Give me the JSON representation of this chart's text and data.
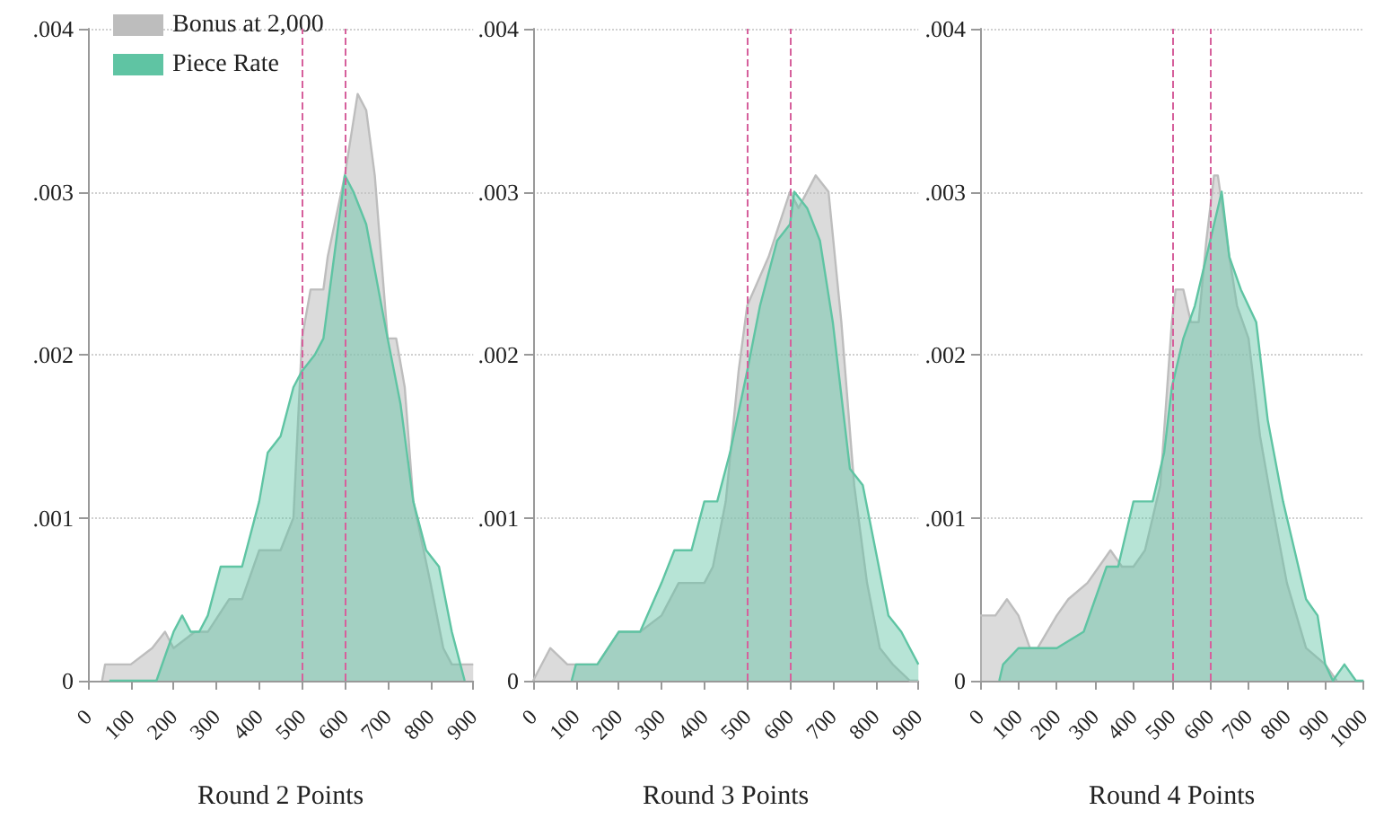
{
  "chart_data": [
    {
      "type": "area",
      "xlabel": "Round 2 Points",
      "xlim": [
        0,
        900
      ],
      "xticks": [
        0,
        100,
        200,
        300,
        400,
        500,
        600,
        700,
        800,
        900
      ],
      "ylim": [
        0,
        0.004
      ],
      "yticks": [
        {
          "value": 0,
          "label": "0"
        },
        {
          "value": 0.001,
          "label": ".001"
        },
        {
          "value": 0.002,
          "label": ".002"
        },
        {
          "value": 0.003,
          "label": ".003"
        },
        {
          "value": 0.004,
          "label": ".004"
        }
      ],
      "grid": "y",
      "legend": "top left",
      "line_style": "solid",
      "marker": "none",
      "ref_lines": [
        {
          "axis": "x",
          "value": 500,
          "color": "#d6609c",
          "line_style": "dashed"
        },
        {
          "axis": "x",
          "value": 600,
          "color": "#d6609c",
          "line_style": "dashed"
        }
      ],
      "series": [
        {
          "name": "Bonus at 2,000",
          "color": "#bdbdbd",
          "x": [
            33,
            40,
            100,
            150,
            180,
            200,
            250,
            280,
            330,
            360,
            400,
            450,
            480,
            500,
            520,
            550,
            560,
            600,
            630,
            650,
            670,
            700,
            720,
            740,
            760,
            800,
            830,
            850,
            880,
            900
          ],
          "values": [
            0,
            0.0001,
            0.0001,
            0.0002,
            0.0003,
            0.0002,
            0.0003,
            0.0003,
            0.0005,
            0.0005,
            0.0008,
            0.0008,
            0.001,
            0.0021,
            0.0024,
            0.0024,
            0.0026,
            0.0031,
            0.0036,
            0.0035,
            0.0031,
            0.0021,
            0.0021,
            0.0018,
            0.0011,
            0.0006,
            0.0002,
            0.0001,
            0.0001,
            0.0001
          ]
        },
        {
          "name": "Piece Rate",
          "color": "#5fc4a3",
          "x": [
            50,
            70,
            100,
            140,
            160,
            200,
            220,
            240,
            260,
            280,
            310,
            320,
            340,
            360,
            380,
            400,
            420,
            450,
            480,
            500,
            530,
            550,
            570,
            600,
            620,
            650,
            700,
            730,
            760,
            790,
            820,
            850,
            870,
            880
          ],
          "values": [
            0,
            0,
            0,
            0,
            0,
            0.0003,
            0.0004,
            0.0003,
            0.0003,
            0.0004,
            0.0007,
            0.0007,
            0.0007,
            0.0007,
            0.0009,
            0.0011,
            0.0014,
            0.0015,
            0.0018,
            0.0019,
            0.002,
            0.0021,
            0.0025,
            0.0031,
            0.003,
            0.0028,
            0.0021,
            0.0017,
            0.0011,
            0.0008,
            0.0007,
            0.0003,
            0.0001,
            0
          ]
        }
      ]
    },
    {
      "type": "area",
      "xlabel": "Round 3 Points",
      "xlim": [
        0,
        900
      ],
      "xticks": [
        0,
        100,
        200,
        300,
        400,
        500,
        600,
        700,
        800,
        900
      ],
      "ylim": [
        0,
        0.004
      ],
      "yticks": [
        {
          "value": 0,
          "label": "0"
        },
        {
          "value": 0.001,
          "label": ".001"
        },
        {
          "value": 0.002,
          "label": ".002"
        },
        {
          "value": 0.003,
          "label": ".003"
        },
        {
          "value": 0.004,
          "label": ".004"
        }
      ],
      "grid": "y",
      "line_style": "solid",
      "marker": "none",
      "ref_lines": [
        {
          "axis": "x",
          "value": 500,
          "color": "#d6609c",
          "line_style": "dashed"
        },
        {
          "axis": "x",
          "value": 600,
          "color": "#d6609c",
          "line_style": "dashed"
        }
      ],
      "series": [
        {
          "color": "#bdbdbd",
          "x": [
            0,
            40,
            80,
            130,
            150,
            200,
            250,
            300,
            340,
            370,
            400,
            420,
            450,
            480,
            500,
            550,
            600,
            620,
            660,
            690,
            720,
            750,
            780,
            810,
            840,
            880,
            900
          ],
          "values": [
            0,
            0.0002,
            0.0001,
            0.0001,
            0.0001,
            0.0003,
            0.0003,
            0.0004,
            0.0006,
            0.0006,
            0.0006,
            0.0007,
            0.0011,
            0.0019,
            0.0023,
            0.0026,
            0.003,
            0.0029,
            0.0031,
            0.003,
            0.0022,
            0.0012,
            0.0006,
            0.0002,
            0.0001,
            0,
            0
          ]
        },
        {
          "color": "#5fc4a3",
          "x": [
            90,
            100,
            150,
            200,
            250,
            300,
            330,
            350,
            370,
            400,
            430,
            460,
            500,
            530,
            570,
            600,
            610,
            640,
            670,
            700,
            740,
            770,
            800,
            830,
            860,
            880,
            900
          ],
          "values": [
            0,
            0.0001,
            0.0001,
            0.0003,
            0.0003,
            0.0006,
            0.0008,
            0.0008,
            0.0008,
            0.0011,
            0.0011,
            0.0014,
            0.0019,
            0.0023,
            0.0027,
            0.0028,
            0.003,
            0.0029,
            0.0027,
            0.0022,
            0.0013,
            0.0012,
            0.0008,
            0.0004,
            0.0003,
            0.0002,
            0.0001
          ]
        }
      ]
    },
    {
      "type": "area",
      "xlabel": "Round 4 Points",
      "xlim": [
        0,
        1000
      ],
      "xticks": [
        0,
        100,
        200,
        300,
        400,
        500,
        600,
        700,
        800,
        900,
        1000
      ],
      "ylim": [
        0,
        0.004
      ],
      "yticks": [
        {
          "value": 0,
          "label": "0"
        },
        {
          "value": 0.001,
          "label": ".001"
        },
        {
          "value": 0.002,
          "label": ".002"
        },
        {
          "value": 0.003,
          "label": ".003"
        },
        {
          "value": 0.004,
          "label": ".004"
        }
      ],
      "grid": "y",
      "line_style": "solid",
      "marker": "none",
      "ref_lines": [
        {
          "axis": "x",
          "value": 500,
          "color": "#d6609c",
          "line_style": "dashed"
        },
        {
          "axis": "x",
          "value": 600,
          "color": "#d6609c",
          "line_style": "dashed"
        }
      ],
      "series": [
        {
          "color": "#bdbdbd",
          "x": [
            0,
            20,
            40,
            70,
            100,
            130,
            150,
            200,
            230,
            280,
            310,
            340,
            370,
            400,
            430,
            470,
            500,
            510,
            530,
            550,
            570,
            590,
            610,
            620,
            650,
            670,
            700,
            730,
            760,
            800,
            850,
            900,
            930
          ],
          "values": [
            0.0004,
            0.0004,
            0.0004,
            0.0005,
            0.0004,
            0.0002,
            0.0002,
            0.0004,
            0.0005,
            0.0006,
            0.0007,
            0.0008,
            0.0007,
            0.0007,
            0.0008,
            0.0012,
            0.0022,
            0.0024,
            0.0024,
            0.0022,
            0.0022,
            0.0027,
            0.0031,
            0.0031,
            0.0026,
            0.0023,
            0.0021,
            0.0015,
            0.0011,
            0.0006,
            0.0002,
            0.0001,
            0
          ]
        },
        {
          "color": "#5fc4a3",
          "x": [
            50,
            60,
            100,
            150,
            200,
            270,
            300,
            330,
            360,
            400,
            420,
            450,
            480,
            500,
            530,
            560,
            600,
            630,
            650,
            680,
            720,
            750,
            790,
            820,
            850,
            880,
            900,
            920,
            950,
            980,
            1000
          ],
          "values": [
            0,
            0.0001,
            0.0002,
            0.0002,
            0.0002,
            0.0003,
            0.0005,
            0.0007,
            0.0007,
            0.0011,
            0.0011,
            0.0011,
            0.0014,
            0.0018,
            0.0021,
            0.0023,
            0.0027,
            0.003,
            0.0026,
            0.0024,
            0.0022,
            0.0016,
            0.0011,
            0.0008,
            0.0005,
            0.0004,
            0.0001,
            0,
            0.0001,
            0,
            0
          ]
        }
      ]
    }
  ]
}
